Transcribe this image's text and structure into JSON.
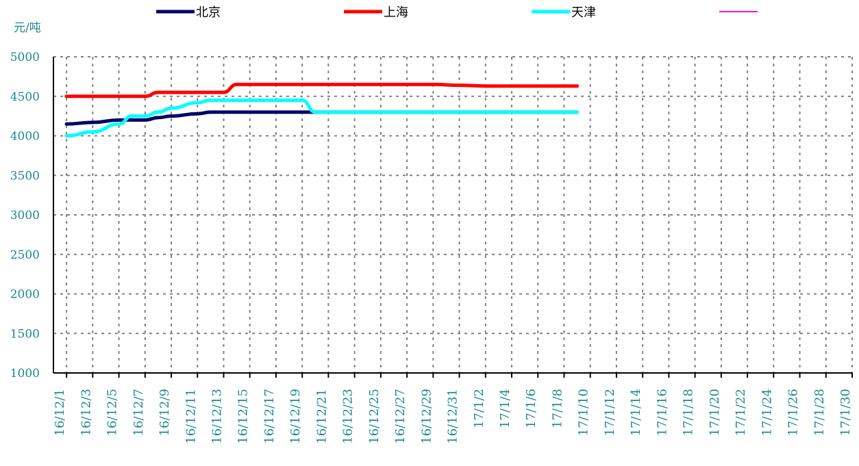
{
  "colors": {
    "axis_text": "#1a8a8a",
    "grid": "#808080",
    "axis_line": "#000000"
  },
  "chart_data": {
    "type": "line",
    "unit_label": "元/吨",
    "ylim": [
      1000,
      5000
    ],
    "yticks": [
      1000,
      1500,
      2000,
      2500,
      3000,
      3500,
      4000,
      4500,
      5000
    ],
    "grid": true,
    "legend_position": "top",
    "categories": [
      "16/12/1",
      "16/12/3",
      "16/12/5",
      "16/12/7",
      "16/12/9",
      "16/12/11",
      "16/12/13",
      "16/12/15",
      "16/12/17",
      "16/12/19",
      "16/12/21",
      "16/12/23",
      "16/12/25",
      "16/12/27",
      "16/12/29",
      "16/12/31",
      "17/1/2",
      "17/1/4",
      "17/1/6",
      "17/1/8",
      "17/1/10",
      "17/1/12",
      "17/1/14",
      "17/1/16",
      "17/1/18",
      "17/1/20",
      "17/1/22",
      "17/1/24",
      "17/1/26",
      "17/1/28",
      "17/1/30"
    ],
    "series": [
      {
        "name": "北京",
        "color": "#000066",
        "points": [
          [
            "16/12/1",
            4150
          ],
          [
            "16/12/3",
            4170
          ],
          [
            "16/12/5",
            4200
          ],
          [
            "16/12/6",
            4200
          ],
          [
            "16/12/7",
            4200
          ],
          [
            "16/12/8",
            4230
          ],
          [
            "16/12/9",
            4250
          ],
          [
            "16/12/11",
            4280
          ],
          [
            "16/12/12",
            4300
          ],
          [
            "16/12/13",
            4300
          ],
          [
            "16/12/15",
            4300
          ],
          [
            "16/12/17",
            4300
          ],
          [
            "16/12/19",
            4300
          ],
          [
            "16/12/21",
            4300
          ],
          [
            "16/12/23",
            4300
          ],
          [
            "16/12/25",
            4300
          ],
          [
            "16/12/27",
            4300
          ],
          [
            "16/12/29",
            4300
          ],
          [
            "16/12/31",
            4300
          ],
          [
            "17/1/2",
            4300
          ],
          [
            "17/1/4",
            4300
          ],
          [
            "17/1/6",
            4300
          ],
          [
            "17/1/9",
            4300
          ]
        ]
      },
      {
        "name": "上海",
        "color": "#ff0000",
        "points": [
          [
            "16/12/1",
            4500
          ],
          [
            "16/12/3",
            4500
          ],
          [
            "16/12/5",
            4500
          ],
          [
            "16/12/7",
            4500
          ],
          [
            "16/12/8",
            4550
          ],
          [
            "16/12/9",
            4550
          ],
          [
            "16/12/11",
            4550
          ],
          [
            "16/12/13",
            4550
          ],
          [
            "16/12/14",
            4650
          ],
          [
            "16/12/15",
            4650
          ],
          [
            "16/12/17",
            4650
          ],
          [
            "16/12/19",
            4650
          ],
          [
            "16/12/21",
            4650
          ],
          [
            "16/12/23",
            4650
          ],
          [
            "16/12/25",
            4650
          ],
          [
            "16/12/27",
            4650
          ],
          [
            "16/12/29",
            4650
          ],
          [
            "16/12/31",
            4640
          ],
          [
            "17/1/2",
            4630
          ],
          [
            "17/1/4",
            4630
          ],
          [
            "17/1/6",
            4630
          ],
          [
            "17/1/9",
            4630
          ]
        ]
      },
      {
        "name": "天津",
        "color": "#00ffff",
        "points": [
          [
            "16/12/1",
            4000
          ],
          [
            "16/12/3",
            4050
          ],
          [
            "16/12/5",
            4150
          ],
          [
            "16/12/6",
            4250
          ],
          [
            "16/12/7",
            4250
          ],
          [
            "16/12/8",
            4300
          ],
          [
            "16/12/9",
            4350
          ],
          [
            "16/12/11",
            4420
          ],
          [
            "16/12/12",
            4450
          ],
          [
            "16/12/13",
            4450
          ],
          [
            "16/12/15",
            4450
          ],
          [
            "16/12/17",
            4450
          ],
          [
            "16/12/19",
            4450
          ],
          [
            "16/12/20",
            4300
          ],
          [
            "16/12/21",
            4300
          ],
          [
            "16/12/23",
            4300
          ],
          [
            "16/12/25",
            4300
          ],
          [
            "16/12/27",
            4300
          ],
          [
            "16/12/29",
            4300
          ],
          [
            "16/12/31",
            4300
          ],
          [
            "17/1/2",
            4300
          ],
          [
            "17/1/4",
            4300
          ],
          [
            "17/1/6",
            4300
          ],
          [
            "17/1/9",
            4300
          ]
        ]
      },
      {
        "name": "",
        "color": "#ff00ff",
        "points": []
      }
    ]
  }
}
